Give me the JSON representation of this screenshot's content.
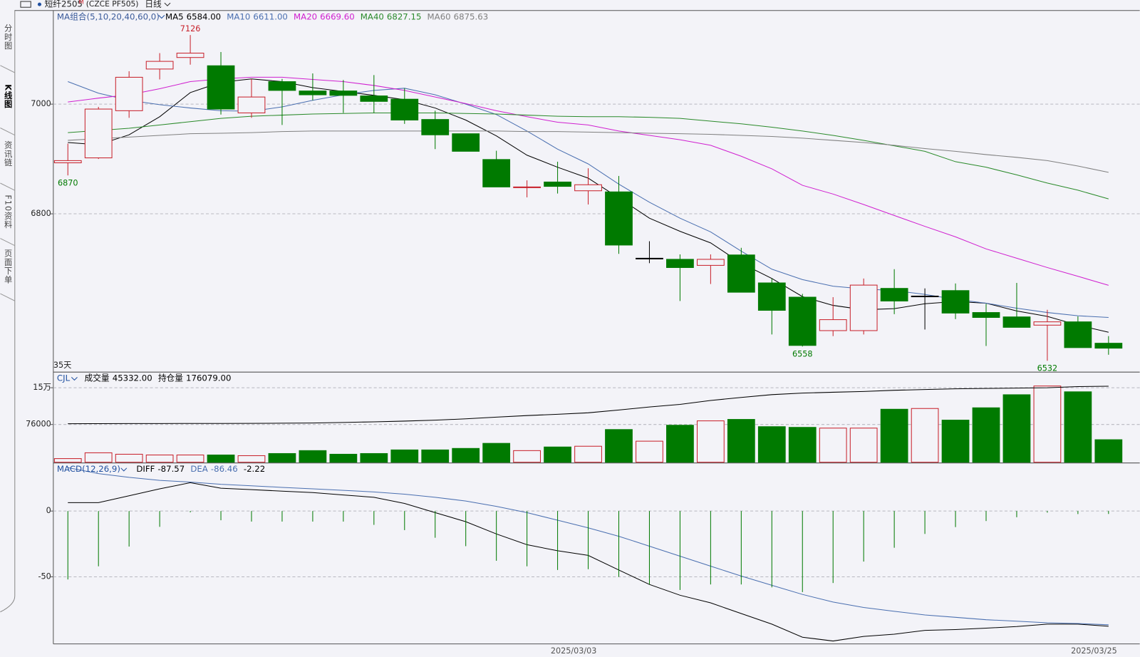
{
  "toolbar": {
    "symbol": "短纤2505",
    "flag": "M",
    "code": "(CZCE PF505)",
    "period": "日线"
  },
  "sidebar": {
    "tabs": [
      "分时图",
      "K线图",
      "资讯链",
      "F10资料",
      "页面下单"
    ]
  },
  "chart_data": [
    {
      "type": "candlestick",
      "title": "MA组合(5,10,20,40,60,0)",
      "footnote": "35天",
      "categories": [
        null,
        null,
        null,
        null,
        null,
        null,
        null,
        null,
        null,
        null,
        null,
        null,
        null,
        null,
        null,
        null,
        null,
        "2025/03/03",
        null,
        null,
        null,
        null,
        null,
        null,
        null,
        null,
        null,
        null,
        null,
        null,
        null,
        null,
        null,
        null,
        "2025/03/25"
      ],
      "open": [
        6893,
        6902,
        6988,
        7064,
        7085,
        7070,
        6984,
        7041,
        7024,
        7024,
        7015,
        7009,
        6972,
        6946,
        6899,
        6848,
        6858,
        6842,
        6840,
        6719,
        6717,
        6706,
        6725,
        6674,
        6648,
        6587,
        6587,
        6664,
        6650,
        6660,
        6620,
        6612,
        6597,
        6603,
        6564
      ],
      "high": [
        6928,
        6995,
        7060,
        7093,
        7126,
        7095,
        7046,
        7046,
        7056,
        7044,
        7053,
        7029,
        6988,
        6946,
        6915,
        6861,
        6895,
        6883,
        6869,
        6750,
        6726,
        6726,
        6738,
        6682,
        6654,
        6648,
        6682,
        6699,
        6664,
        6673,
        6636,
        6674,
        6625,
        6613,
        6577
      ],
      "low": [
        6870,
        6900,
        6975,
        7045,
        7072,
        6981,
        6975,
        6962,
        7007,
        6984,
        6984,
        6964,
        6918,
        6914,
        6849,
        6830,
        6837,
        6817,
        6727,
        6710,
        6641,
        6672,
        6657,
        6580,
        6558,
        6577,
        6580,
        6617,
        6589,
        6608,
        6559,
        6593,
        6532,
        6556,
        6543
      ],
      "close": [
        6897,
        6991,
        7049,
        7078,
        7093,
        6991,
        7013,
        7025,
        7017,
        7016,
        7005,
        6971,
        6944,
        6914,
        6849,
        6849,
        6850,
        6853,
        6743,
        6719,
        6702,
        6717,
        6657,
        6624,
        6560,
        6607,
        6670,
        6641,
        6650,
        6619,
        6611,
        6593,
        6603,
        6556,
        6555
      ],
      "extreme_labels": [
        {
          "series": "high",
          "index": 4
        },
        {
          "series": "low",
          "index": 0
        },
        {
          "series": "low",
          "index": 24
        },
        {
          "series": "low",
          "index": 32
        }
      ],
      "up_color": "#c8202a",
      "down_color": "#007a00",
      "flat_color": "#000000",
      "ylim": [
        6514,
        7170
      ],
      "yticks": [
        6800,
        7000
      ],
      "grid": true,
      "series": [
        {
          "name": "MA5",
          "legend_value": "6584.00",
          "color": "#000000",
          "values": [
            6930,
            6926,
            6944,
            6977,
            7021,
            7040,
            7046,
            7041,
            7030,
            7023,
            7016,
            7008,
            6993,
            6971,
            6942,
            6907,
            6885,
            6865,
            6829,
            6792,
            6768,
            6747,
            6710,
            6682,
            6649,
            6633,
            6625,
            6627,
            6636,
            6640,
            6637,
            6623,
            6613,
            6597,
            6584
          ]
        },
        {
          "name": "MA10",
          "legend_value": "6611.00",
          "color": "#4a6fb0",
          "values": [
            7041,
            7020,
            7007,
            6999,
            6993,
            6988,
            6987,
            6995,
            7007,
            7017,
            7025,
            7029,
            7017,
            7000,
            6981,
            6951,
            6918,
            6891,
            6854,
            6821,
            6792,
            6767,
            6732,
            6699,
            6680,
            6668,
            6663,
            6660,
            6653,
            6644,
            6637,
            6628,
            6620,
            6614,
            6611
          ]
        },
        {
          "name": "MA20",
          "legend_value": "6669.60",
          "color": "#d020d0",
          "values": [
            7004,
            7011,
            7017,
            7028,
            7041,
            7046,
            7049,
            7049,
            7045,
            7041,
            7034,
            7025,
            7013,
            7001,
            6988,
            6977,
            6967,
            6962,
            6951,
            6943,
            6935,
            6925,
            6905,
            6882,
            6852,
            6836,
            6817,
            6797,
            6777,
            6758,
            6736,
            6719,
            6702,
            6686,
            6669.6
          ]
        },
        {
          "name": "MA40",
          "legend_value": "6827.15",
          "color": "#2a8a2a",
          "values": [
            6948,
            6952,
            6956,
            6962,
            6968,
            6974,
            6978,
            6980,
            6982,
            6983,
            6984,
            6984,
            6984,
            6983,
            6982,
            6980,
            6978,
            6977,
            6977,
            6976,
            6974,
            6969,
            6964,
            6958,
            6951,
            6943,
            6934,
            6924,
            6914,
            6895,
            6885,
            6871,
            6856,
            6843,
            6827.15
          ]
        },
        {
          "name": "MA60",
          "legend_value": "6875.63",
          "color": "#808080",
          "values": [
            6934,
            6937,
            6940,
            6943,
            6946,
            6947,
            6948,
            6950,
            6951,
            6951,
            6951,
            6951,
            6951,
            6951,
            6951,
            6950,
            6950,
            6949,
            6948,
            6947,
            6946,
            6945,
            6943,
            6941,
            6938,
            6934,
            6930,
            6925,
            6919,
            6914,
            6908,
            6903,
            6897,
            6887,
            6875.63
          ]
        }
      ]
    },
    {
      "type": "bar",
      "title": "CJL",
      "ylim": [
        0,
        180000
      ],
      "yticks": [
        76000,
        {
          "value": 150000,
          "label": "15万"
        }
      ],
      "y2lim": [
        0,
        207000
      ],
      "grid": true,
      "series": [
        {
          "name": "成交量",
          "legend_value": "45332.00",
          "values": [
            7300,
            19000,
            16100,
            14600,
            14600,
            14600,
            13200,
            17500,
            23400,
            16100,
            17500,
            24800,
            24800,
            27800,
            38000,
            23400,
            30700,
            32200,
            65800,
            42400,
            74500,
            83300,
            86200,
            71600,
            70200,
            68700,
            68700,
            106700,
            108200,
            84800,
            109600,
            135900,
            153500,
            141800,
            45332
          ]
        },
        {
          "name": "持仓量",
          "legend_value": "176079.00",
          "axis": "y2",
          "color": "#000000",
          "values": [
            89200,
            89300,
            89500,
            89600,
            89800,
            89900,
            90100,
            90400,
            90900,
            92000,
            93500,
            95200,
            97500,
            100500,
            104500,
            108000,
            111000,
            114400,
            121000,
            127900,
            134000,
            143000,
            150000,
            156500,
            160000,
            162000,
            164000,
            166600,
            168300,
            169900,
            170800,
            171700,
            172500,
            175200,
            176079
          ]
        }
      ]
    },
    {
      "type": "macd",
      "title": "MACD(12,26,9)",
      "ylim": [
        -101,
        36
      ],
      "yticks": [
        -50,
        0
      ],
      "grid": true,
      "series": [
        {
          "name": "DIFF",
          "legend_value": "-87.57",
          "color": "#000000",
          "values": [
            6.4,
            6.4,
            11.6,
            16.9,
            21.5,
            17.4,
            16.3,
            15.1,
            14,
            12.2,
            10.5,
            5.8,
            -1.2,
            -8.1,
            -17.4,
            -25.6,
            -30.2,
            -33.7,
            -44.8,
            -55.8,
            -64,
            -69.8,
            -77.9,
            -86,
            -95.9,
            -98.8,
            -95.3,
            -93.6,
            -90.7,
            -90.1,
            -89,
            -87.8,
            -86,
            -86,
            -87.57
          ]
        },
        {
          "name": "DEA",
          "legend_value": "-86.46",
          "color": "#4a6fb0",
          "values": [
            33,
            28.5,
            25.6,
            23.3,
            22,
            20.3,
            19.2,
            18,
            16.9,
            15.7,
            14.5,
            12.8,
            10.5,
            7.6,
            3.5,
            -1.2,
            -7,
            -12.8,
            -19.2,
            -26.7,
            -34.3,
            -41.9,
            -49.4,
            -56.4,
            -63.4,
            -69.2,
            -73.3,
            -76.2,
            -79,
            -80.8,
            -82.6,
            -83.7,
            -84.9,
            -85.5,
            -86.46
          ]
        },
        {
          "legend_value": "-2.22",
          "color": "#000000",
          "bar_up_color": "#c8202a",
          "bar_down_color": "#007a00",
          "values": [
            -52,
            -42,
            -27,
            -12,
            -1,
            -7,
            -8,
            -8,
            -8,
            -8,
            -10.5,
            -14.5,
            -20.3,
            -26.7,
            -37.8,
            -42,
            -44.8,
            -44.2,
            -50,
            -55.8,
            -60,
            -55.8,
            -55.8,
            -58,
            -61.6,
            -54.7,
            -38.4,
            -27.9,
            -17.4,
            -12.2,
            -7.6,
            -4.7,
            -1.2,
            -2.3,
            -2.22
          ]
        }
      ]
    }
  ]
}
